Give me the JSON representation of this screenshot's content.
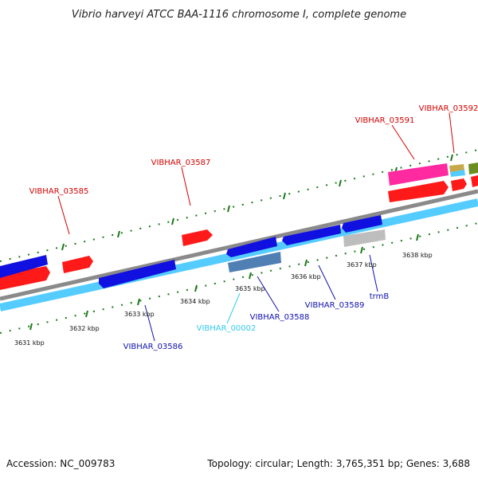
{
  "title": "Vibrio harveyi ATCC BAA-1116 chromosome I, complete genome",
  "footer": {
    "accession": "Accession: NC_009783",
    "summary": "Topology: circular; Length: 3,765,351 bp; Genes: 3,688"
  },
  "ticks": [
    "3631 kbp",
    "3632 kbp",
    "3633 kbp",
    "3634 kbp",
    "3635 kbp",
    "3636 kbp",
    "3637 kbp",
    "3638 kbp"
  ],
  "labels": [
    {
      "text": "VIBHAR_03585",
      "color": "#d40000"
    },
    {
      "text": "VIBHAR_03587",
      "color": "#d40000"
    },
    {
      "text": "VIBHAR_03591",
      "color": "#d40000"
    },
    {
      "text": "VIBHAR_03592",
      "color": "#d40000"
    },
    {
      "text": "VIBHAR_03586",
      "color": "#1010b0"
    },
    {
      "text": "VIBHAR_00002",
      "color": "#33c8f0"
    },
    {
      "text": "VIBHAR_03588",
      "color": "#1010b0"
    },
    {
      "text": "VIBHAR_03589",
      "color": "#1010b0"
    },
    {
      "text": "trmB",
      "color": "#1010b0"
    }
  ],
  "colors": {
    "backbone": "#8a8a8a",
    "cds_forward": "#ff1a1a",
    "cds_reverse": "#1010e0",
    "gene_reverse": "#55ccff",
    "rna": "#ff2aa0",
    "pseudo": "#bdbdbd",
    "misc": "#4f7fb3",
    "tick": "#1a7a1a"
  }
}
